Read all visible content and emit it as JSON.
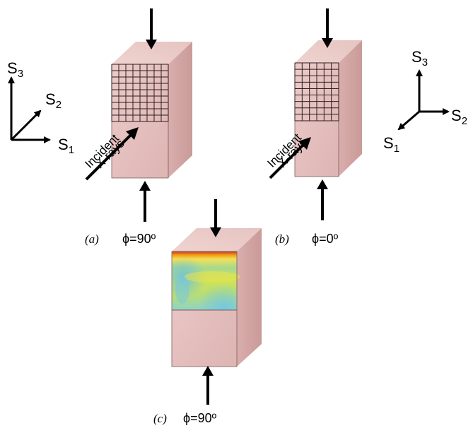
{
  "panels": {
    "a": {
      "letter": "(a)",
      "angle": "ϕ=90º",
      "beam_line1": "Incident",
      "beam_line2": "X-rays"
    },
    "b": {
      "letter": "(b)",
      "angle": "ϕ=0º",
      "beam_line1": "Incident",
      "beam_line2": "X-rays"
    },
    "c": {
      "letter": "(c)",
      "angle": "ϕ=90º"
    }
  },
  "axes_left": {
    "s1": "S",
    "s1_sub": "1",
    "s2": "S",
    "s2_sub": "2",
    "s3": "S",
    "s3_sub": "3"
  },
  "axes_right": {
    "s1": "S",
    "s1_sub": "1",
    "s2": "S",
    "s2_sub": "2",
    "s3": "S",
    "s3_sub": "3"
  },
  "colors": {
    "block_front": "#e8c4c2",
    "block_top": "#edcfcc",
    "block_side": "#d4a7a5",
    "outline": "#7a5a5a",
    "grid": "#2b1f1f",
    "arrow": "#000000"
  }
}
